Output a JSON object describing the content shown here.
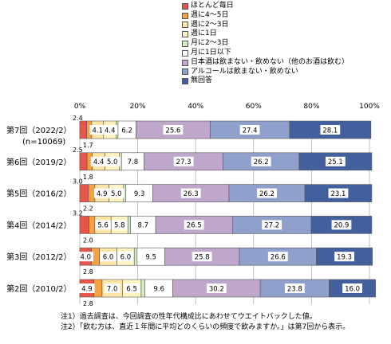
{
  "chart_data": {
    "type": "bar",
    "orientation": "horizontal",
    "stacked": true,
    "xlim": [
      0,
      100
    ],
    "x_ticks": [
      "0%",
      "20%",
      "40%",
      "60%",
      "80%",
      "100%"
    ],
    "legend_position": "top-right",
    "categories": [
      {
        "label": "第7回（2022/2）",
        "sub": "(n=10069)"
      },
      {
        "label": "第6回（2019/2）"
      },
      {
        "label": "第5回（2016/2）"
      },
      {
        "label": "第4回（2014/2）"
      },
      {
        "label": "第3回（2012/2）"
      },
      {
        "label": "第2回（2010/2）"
      }
    ],
    "series": [
      {
        "name": "ほとんど毎日",
        "color": "#e8564b",
        "values": [
          2.4,
          2.5,
          3.0,
          3.2,
          4.0,
          4.9
        ]
      },
      {
        "name": "週に4～5日",
        "color": "#f5a13f",
        "values": [
          1.7,
          1.8,
          2.2,
          2.0,
          2.8,
          2.8
        ]
      },
      {
        "name": "週に2～3日",
        "color": "#fde5a8",
        "values": [
          4.1,
          4.4,
          4.9,
          5.6,
          6.0,
          7.0
        ]
      },
      {
        "name": "週に1日",
        "color": "#fff4c2",
        "values": [
          4.4,
          5.0,
          5.0,
          5.8,
          6.0,
          6.5
        ]
      },
      {
        "name": "月に2～3日",
        "color": "#d3ecc4",
        "values": [
          0.6,
          0.7,
          0.8,
          0.9,
          1.0,
          1.3
        ]
      },
      {
        "name": "月に1日以下",
        "color": "#ffffff",
        "values": [
          6.2,
          7.8,
          9.3,
          8.7,
          9.5,
          9.6
        ]
      },
      {
        "name": "日本酒は飲まない・飲めない（他のお酒は飲む）",
        "color": "#bfa7cc",
        "values": [
          25.6,
          27.3,
          26.3,
          26.5,
          25.8,
          30.2
        ]
      },
      {
        "name": "アルコールは飲まない・飲めない",
        "color": "#8fa0cc",
        "values": [
          27.4,
          26.2,
          26.2,
          27.2,
          26.6,
          23.8
        ]
      },
      {
        "name": "無回答",
        "color": "#42609e",
        "values": [
          28.1,
          25.1,
          23.1,
          20.9,
          19.3,
          16.0
        ]
      }
    ],
    "data_labels": [
      {
        "above": "2.4",
        "below": "1.7",
        "inner": [
          "",
          "",
          "4.1",
          "4.4",
          "",
          "6.2",
          "25.6",
          "27.4",
          "28.1"
        ]
      },
      {
        "above": "2.5",
        "below": "1.8",
        "inner": [
          "",
          "",
          "4.4",
          "5.0",
          "",
          "7.8",
          "27.3",
          "26.2",
          "25.1"
        ]
      },
      {
        "above": "3.0",
        "below": "2.2",
        "inner": [
          "",
          "",
          "4.9",
          "5.0",
          "",
          "9.3",
          "26.3",
          "26.2",
          "23.1"
        ]
      },
      {
        "above": "3.2",
        "below": "2.0",
        "inner": [
          "",
          "",
          "5.6",
          "5.8",
          "",
          "8.7",
          "26.5",
          "27.2",
          "20.9"
        ]
      },
      {
        "above": "",
        "below": "2.8",
        "inner": [
          "4.0",
          "",
          "6.0",
          "6.0",
          "",
          "9.5",
          "25.8",
          "26.6",
          "19.3"
        ]
      },
      {
        "above": "",
        "below": "2.8",
        "inner": [
          "4.9",
          "",
          "7.0",
          "6.5",
          "",
          "9.6",
          "30.2",
          "23.8",
          "16.0"
        ]
      }
    ]
  },
  "notes": [
    "注1）過去調査は、今回調査の性年代構成比にあわせてウエイトバックした値。",
    "注2）「飲む方は、直近１年間に平均どのくらいの頻度で飲みますか。」は第7回から表示。"
  ]
}
